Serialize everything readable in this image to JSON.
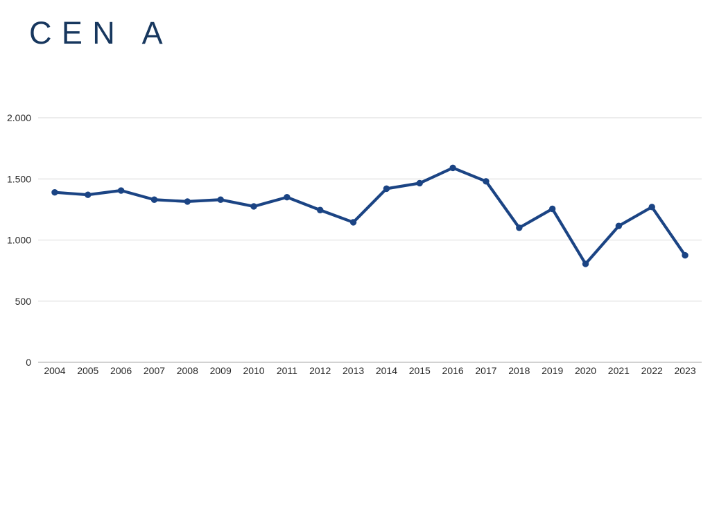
{
  "colors": {
    "accent_line": "#1b4484",
    "title_text": "#17375e",
    "gridline": "#d9d9d9",
    "axis_line": "#a6a6a6",
    "label_text": "#262626",
    "background": "#ffffff"
  },
  "chart_data": {
    "type": "line",
    "title": "CEN A",
    "xlabel": "",
    "ylabel": "",
    "categories": [
      "2004",
      "2005",
      "2006",
      "2007",
      "2008",
      "2009",
      "2010",
      "2011",
      "2012",
      "2013",
      "2014",
      "2015",
      "2016",
      "2017",
      "2018",
      "2019",
      "2020",
      "2021",
      "2022",
      "2023"
    ],
    "series": [
      {
        "name": "CEN A",
        "values": [
          1390,
          1370,
          1405,
          1330,
          1315,
          1330,
          1275,
          1350,
          1245,
          1145,
          1420,
          1465,
          1590,
          1480,
          1100,
          1255,
          805,
          1115,
          1270,
          875
        ]
      }
    ],
    "ylim": [
      0,
      2000
    ],
    "yticks": [
      0,
      500,
      1000,
      1500,
      2000
    ],
    "ytick_labels": [
      "0",
      "500",
      "1.000",
      "1.500",
      "2.000"
    ],
    "grid": "horizontal",
    "legend_position": "none",
    "marker": "circle"
  }
}
